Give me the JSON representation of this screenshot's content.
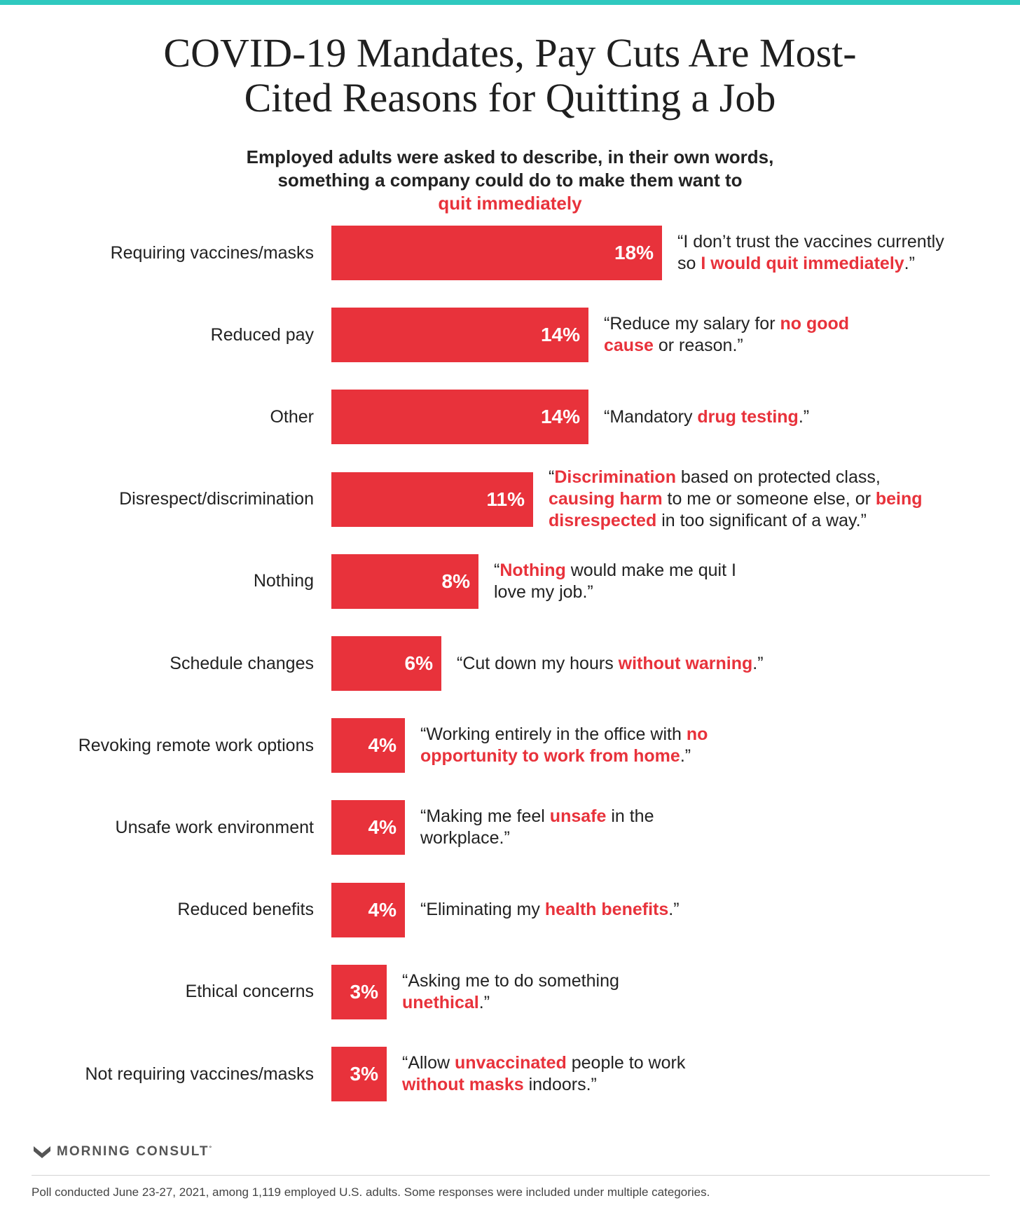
{
  "title_lines": [
    "COVID-19 Mandates, Pay Cuts Are Most-",
    "Cited Reasons for Quitting a Job"
  ],
  "subtitle": {
    "line1": "Employed adults were asked to describe, in their own words,",
    "line2_plain": "something a company could do to make them want to ",
    "line2_highlight": "quit immediately"
  },
  "colors": {
    "accent": "#e8323b",
    "top_rule": "#2fc9bf"
  },
  "chart_data": {
    "type": "bar",
    "orientation": "horizontal",
    "unit": "%",
    "categories": [
      "Requiring vaccines/masks",
      "Reduced pay",
      "Other",
      "Disrespect/discrimination",
      "Nothing",
      "Schedule changes",
      "Revoking remote work options",
      "Unsafe work environment",
      "Reduced benefits",
      "Ethical concerns",
      "Not requiring vaccines/masks"
    ],
    "values": [
      18,
      14,
      14,
      11,
      8,
      6,
      4,
      4,
      4,
      3,
      3
    ],
    "labels": [
      "18%",
      "14%",
      "14%",
      "11%",
      "8%",
      "6%",
      "4%",
      "4%",
      "4%",
      "3%",
      "3%"
    ],
    "quotes": [
      {
        "lines": [
          [
            {
              "t": "“I don’t trust the vaccines currently"
            }
          ],
          [
            {
              "t": "so "
            },
            {
              "t": "I would quit immediately",
              "h": true
            },
            {
              "t": ".”"
            }
          ]
        ]
      },
      {
        "lines": [
          [
            {
              "t": "“Reduce my salary for "
            },
            {
              "t": "no good",
              "h": true
            }
          ],
          [
            {
              "t": "cause",
              "h": true
            },
            {
              "t": " or reason.”"
            }
          ]
        ]
      },
      {
        "lines": [
          [
            {
              "t": "“Mandatory "
            },
            {
              "t": "drug testing",
              "h": true
            },
            {
              "t": ".”"
            }
          ]
        ]
      },
      {
        "lines": [
          [
            {
              "t": "“"
            },
            {
              "t": "Discrimination",
              "h": true
            },
            {
              "t": " based on protected class,"
            }
          ],
          [
            {
              "t": "causing harm",
              "h": true
            },
            {
              "t": " to me or someone else, or "
            },
            {
              "t": "being",
              "h": true
            }
          ],
          [
            {
              "t": "disrespected",
              "h": true
            },
            {
              "t": " in too significant of a way.”"
            }
          ]
        ]
      },
      {
        "lines": [
          [
            {
              "t": "“"
            },
            {
              "t": "Nothing",
              "h": true
            },
            {
              "t": " would make me quit I"
            }
          ],
          [
            {
              "t": "love my job.”"
            }
          ]
        ]
      },
      {
        "lines": [
          [
            {
              "t": "“Cut down my hours "
            },
            {
              "t": "without warning",
              "h": true
            },
            {
              "t": ".”"
            }
          ]
        ]
      },
      {
        "lines": [
          [
            {
              "t": "“Working entirely in the office with "
            },
            {
              "t": "no",
              "h": true
            }
          ],
          [
            {
              "t": "opportunity to work from home",
              "h": true
            },
            {
              "t": ".”"
            }
          ]
        ]
      },
      {
        "lines": [
          [
            {
              "t": "“Making me feel "
            },
            {
              "t": "unsafe",
              "h": true
            },
            {
              "t": " in the"
            }
          ],
          [
            {
              "t": "workplace.”"
            }
          ]
        ]
      },
      {
        "lines": [
          [
            {
              "t": "“Eliminating my "
            },
            {
              "t": "health benefits",
              "h": true
            },
            {
              "t": ".”"
            }
          ]
        ]
      },
      {
        "lines": [
          [
            {
              "t": "“Asking me to do something"
            }
          ],
          [
            {
              "t": "unethical",
              "h": true
            },
            {
              "t": ".”"
            }
          ]
        ]
      },
      {
        "lines": [
          [
            {
              "t": "“Allow "
            },
            {
              "t": "unvaccinated",
              "h": true
            },
            {
              "t": " people to work"
            }
          ],
          [
            {
              "t": "without masks",
              "h": true
            },
            {
              "t": " indoors.”"
            }
          ]
        ]
      }
    ]
  },
  "brand": {
    "name": "MORNING CONSULT",
    "mark": "°"
  },
  "footnote": "Poll conducted June 23-27, 2021, among 1,119 employed U.S. adults. Some responses were included under multiple categories."
}
